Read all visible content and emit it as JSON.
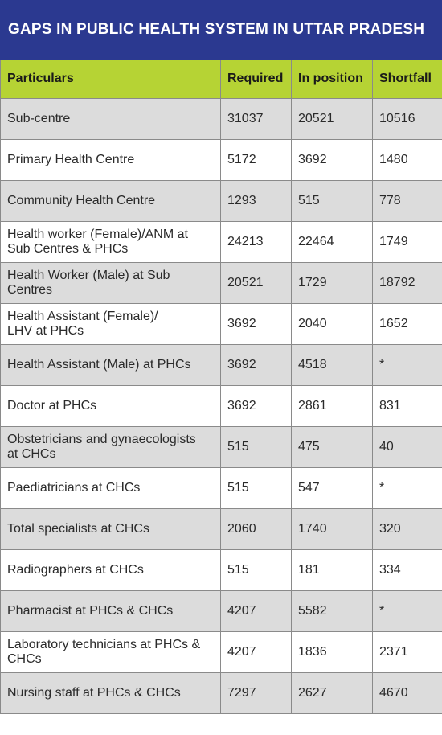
{
  "title": "GAPS IN PUBLIC HEALTH SYSTEM IN  UTTAR PRADESH",
  "colors": {
    "title_bg": "#2b3990",
    "header_bg": "#b6d334",
    "row_shade": "#dcdcdc"
  },
  "table": {
    "headers": [
      "Particulars",
      "Required",
      "In position",
      "Shortfall"
    ],
    "rows": [
      [
        "Sub-centre",
        "31037",
        "20521",
        "10516"
      ],
      [
        "Primary Health Centre",
        "5172",
        "3692",
        "1480"
      ],
      [
        "Community Health Centre",
        "1293",
        "515",
        "778"
      ],
      [
        "Health worker (Female)/ANM at\nSub Centres & PHCs",
        "24213",
        "22464",
        "1749"
      ],
      [
        "Health Worker (Male) at Sub Centres",
        "20521",
        "1729",
        "18792"
      ],
      [
        "Health Assistant (Female)/\nLHV at PHCs",
        "3692",
        "2040",
        "1652"
      ],
      [
        "Health Assistant (Male) at PHCs",
        "3692",
        "4518",
        "*"
      ],
      [
        "Doctor at PHCs",
        "3692",
        "2861",
        "831"
      ],
      [
        "Obstetricians and gynaecologists\nat CHCs",
        "515",
        "475",
        "40"
      ],
      [
        "Paediatricians at CHCs",
        "515",
        "547",
        "*"
      ],
      [
        "Total specialists at CHCs",
        "2060",
        "1740",
        "320"
      ],
      [
        "Radiographers at CHCs",
        "515",
        "181",
        "334"
      ],
      [
        "Pharmacist at PHCs & CHCs",
        "4207",
        "5582",
        "*"
      ],
      [
        "Laboratory technicians at PHCs &\nCHCs",
        "4207",
        "1836",
        "2371"
      ],
      [
        "Nursing staff at PHCs & CHCs",
        "7297",
        "2627",
        "4670"
      ]
    ]
  }
}
